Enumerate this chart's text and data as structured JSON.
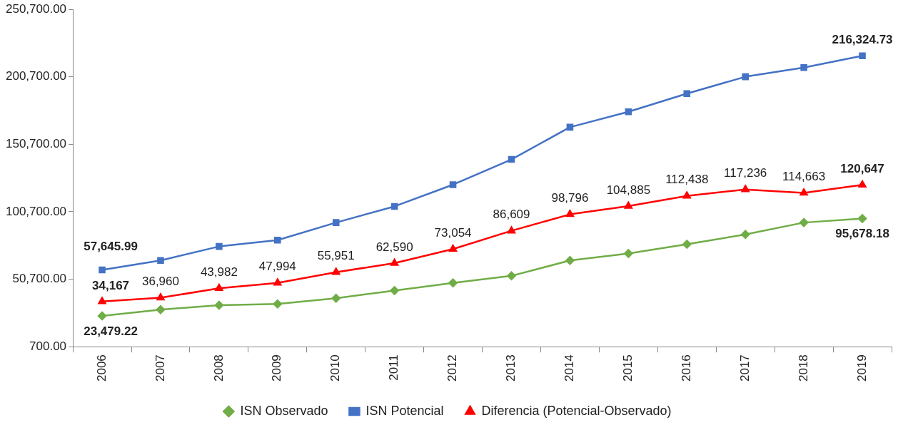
{
  "chart_data": {
    "type": "line",
    "categories": [
      "2006",
      "2007",
      "2008",
      "2009",
      "2010",
      "2011",
      "2012",
      "2013",
      "2014",
      "2015",
      "2016",
      "2017",
      "2018",
      "2019"
    ],
    "series": [
      {
        "name": "ISN Observado",
        "color": "#70ad47",
        "marker": "diamond",
        "values": [
          23479.22,
          28200,
          31400,
          32400,
          36600,
          42300,
          48000,
          53200,
          64600,
          69800,
          76600,
          83900,
          92700,
          95678.18
        ],
        "value_labels": [
          "23,479.22",
          null,
          null,
          null,
          null,
          null,
          null,
          null,
          null,
          null,
          null,
          null,
          null,
          "95,678.18"
        ]
      },
      {
        "name": "ISN Potencial",
        "color": "#4472c4",
        "marker": "square",
        "values": [
          57645.99,
          64600,
          75000,
          79700,
          92700,
          104700,
          120800,
          139500,
          163400,
          174800,
          188300,
          200800,
          207600,
          216324.73
        ],
        "value_labels": [
          "57,645.99",
          null,
          null,
          null,
          null,
          null,
          null,
          null,
          null,
          null,
          null,
          null,
          null,
          "216,324.73"
        ]
      },
      {
        "name": "Diferencia (Potencial-Observado)",
        "color": "#ff0000",
        "marker": "triangle",
        "values": [
          34167,
          36960,
          43982,
          47994,
          55951,
          62590,
          73054,
          86609,
          98796,
          104885,
          112438,
          117236,
          114663,
          120647
        ],
        "value_labels": [
          "34,167",
          "36,960",
          "43,982",
          "47,994",
          "55,951",
          "62,590",
          "73,054",
          "86,609",
          "98,796",
          "104,885",
          "112,438",
          "117,236",
          "114,663",
          "120,647"
        ]
      }
    ],
    "ylim": [
      700,
      250700
    ],
    "yticks": [
      {
        "value": 700,
        "label": "700.00"
      },
      {
        "value": 50700,
        "label": "50,700.00"
      },
      {
        "value": 100700,
        "label": "100,700.00"
      },
      {
        "value": 150700,
        "label": "150,700.00"
      },
      {
        "value": 200700,
        "label": "200,700.00"
      },
      {
        "value": 250700,
        "label": "250,700.00"
      }
    ],
    "grid": false,
    "legend": "bottom",
    "line_style": "solid"
  }
}
